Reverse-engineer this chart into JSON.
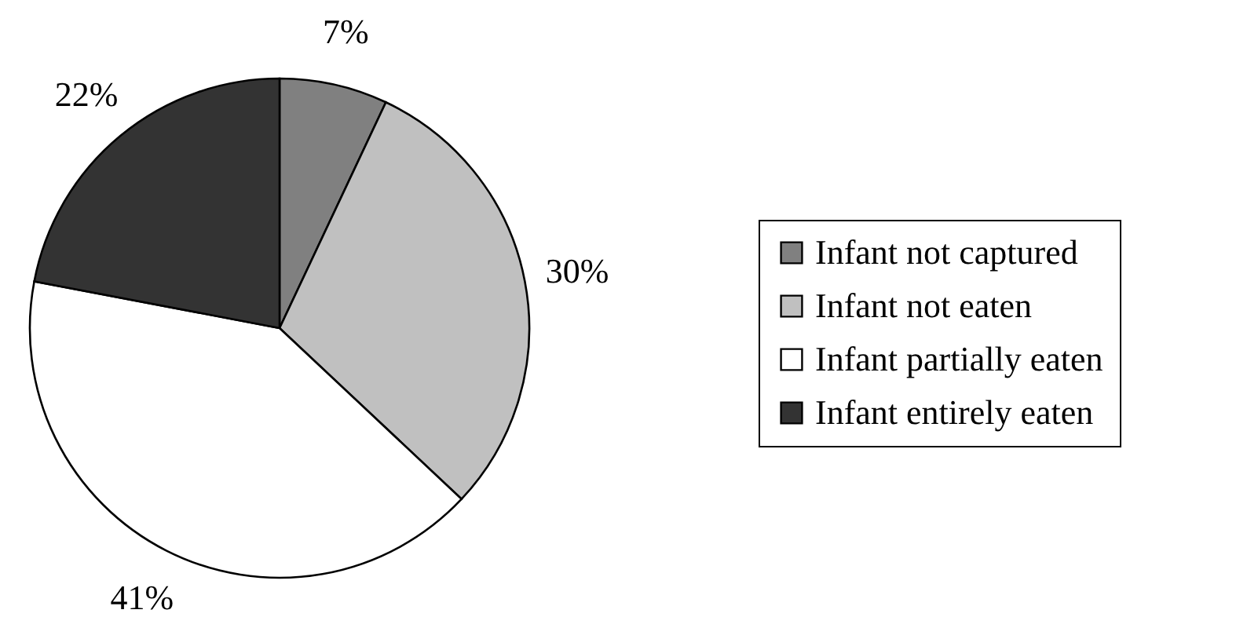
{
  "chart_data": {
    "type": "pie",
    "categories": [
      "Infant not captured",
      "Infant not eaten",
      "Infant partially eaten",
      "Infant entirely eaten"
    ],
    "values": [
      7,
      30,
      41,
      22
    ],
    "colors": [
      "#808080",
      "#c0c0c0",
      "#ffffff",
      "#333333"
    ],
    "value_labels": [
      "7%",
      "30%",
      "41%",
      "22%"
    ],
    "legend": "right"
  }
}
